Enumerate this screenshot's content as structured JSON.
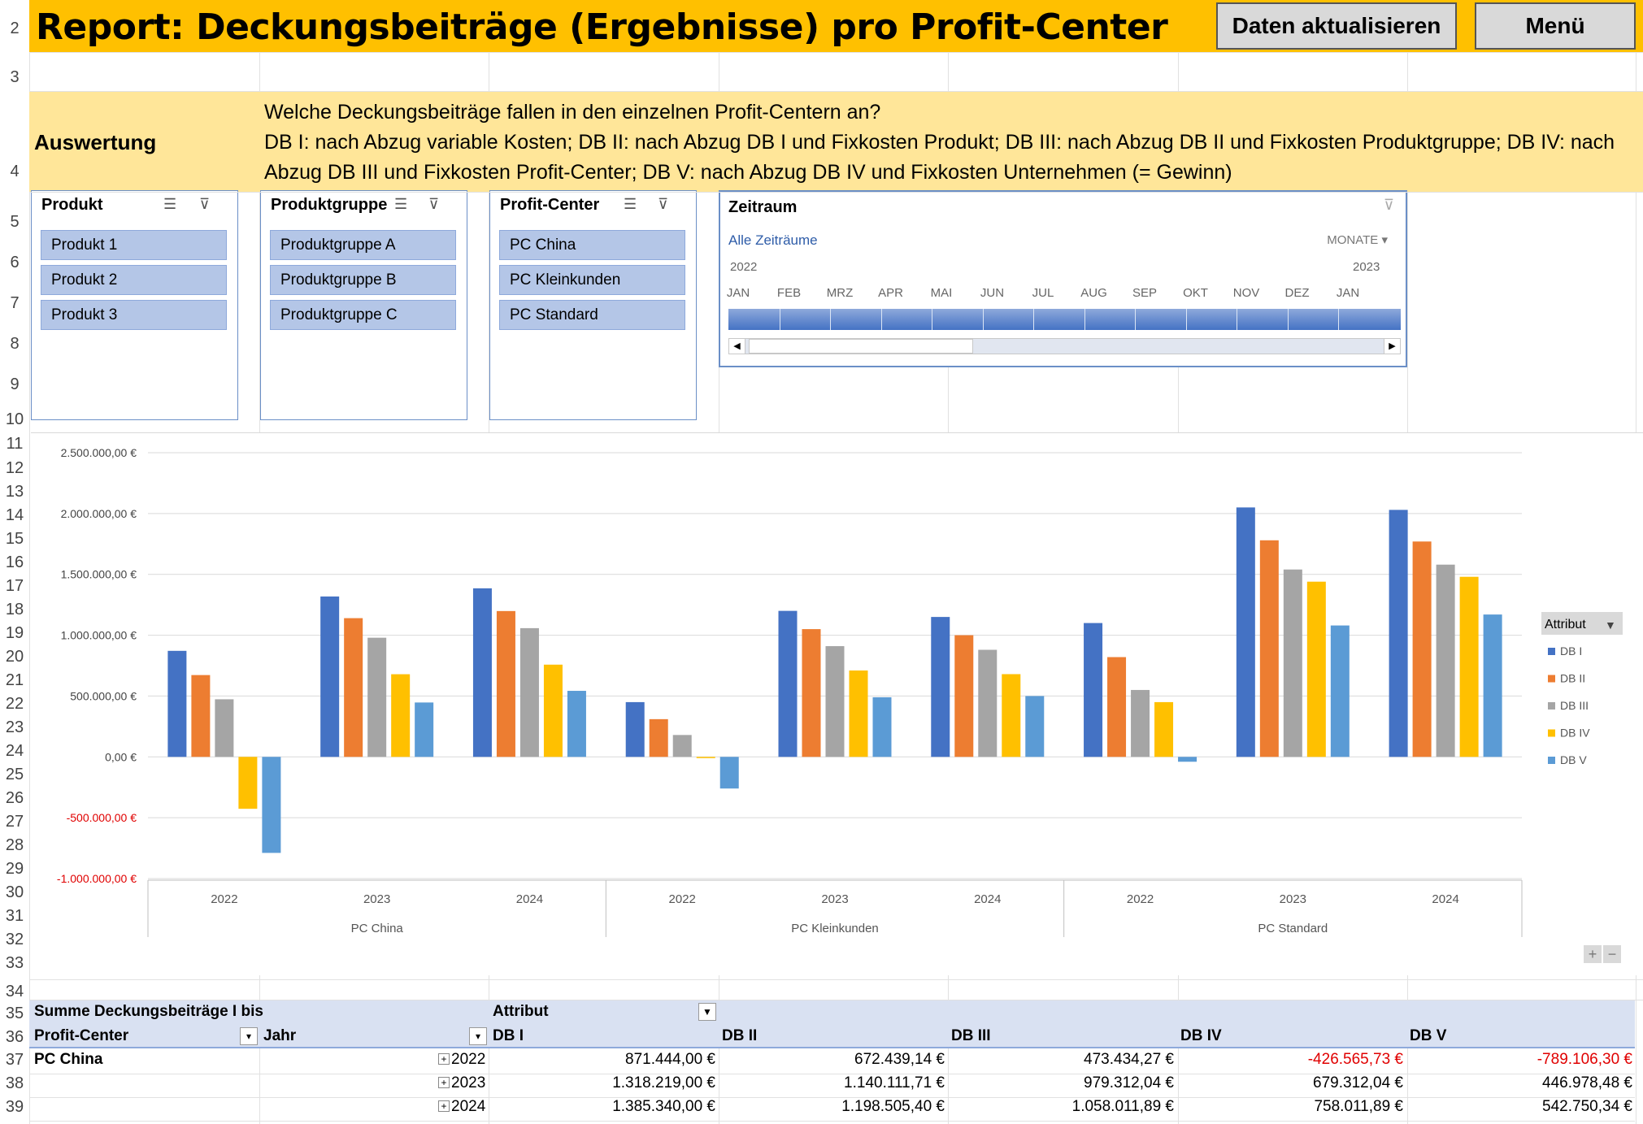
{
  "header": {
    "title": "Report: Deckungsbeiträge (Ergebnisse) pro Profit-Center",
    "refresh_label": "Daten aktualisieren",
    "menu_label": "Menü"
  },
  "info": {
    "label": "Auswertung",
    "line1": "Welche Deckungsbeiträge fallen in den einzelnen Profit-Centern an?",
    "line2": "DB I: nach Abzug variable Kosten; DB II: nach Abzug DB I und Fixkosten Produkt; DB III: nach Abzug DB II und Fixkosten Produktgruppe; DB IV: nach",
    "line3": "Abzug DB III und Fixkosten Profit-Center; DB V: nach Abzug DB IV und Fixkosten Unternehmen (= Gewinn)"
  },
  "rows": [
    "2",
    "3",
    "4",
    "5",
    "6",
    "7",
    "8",
    "9",
    "10",
    "11",
    "12",
    "13",
    "14",
    "15",
    "16",
    "17",
    "18",
    "19",
    "20",
    "21",
    "22",
    "23",
    "24",
    "25",
    "26",
    "27",
    "28",
    "29",
    "30",
    "31",
    "32",
    "33",
    "34",
    "35",
    "36",
    "37",
    "38",
    "39"
  ],
  "slicers": {
    "produkt": {
      "title": "Produkt",
      "items": [
        "Produkt 1",
        "Produkt 2",
        "Produkt 3"
      ]
    },
    "produktgruppe": {
      "title": "Produktgruppe",
      "items": [
        "Produktgruppe A",
        "Produktgruppe B",
        "Produktgruppe C"
      ]
    },
    "profitcenter": {
      "title": "Profit-Center",
      "items": [
        "PC China",
        "PC Kleinkunden",
        "PC Standard"
      ]
    }
  },
  "timeline": {
    "title": "Zeitraum",
    "all_label": "Alle Zeiträume",
    "level": "MONATE",
    "years": [
      "2022",
      "2023"
    ],
    "months": [
      "JAN",
      "FEB",
      "MRZ",
      "APR",
      "MAI",
      "JUN",
      "JUL",
      "AUG",
      "SEP",
      "OKT",
      "NOV",
      "DEZ",
      "JAN"
    ]
  },
  "chart_data": {
    "type": "bar",
    "groups": [
      "PC China",
      "PC Kleinkunden",
      "PC Standard"
    ],
    "categories": [
      "2022",
      "2023",
      "2024",
      "2022",
      "2023",
      "2024",
      "2022",
      "2023",
      "2024"
    ],
    "ylim": [
      -1000000,
      2500000
    ],
    "yticks": [
      "2.500.000,00 €",
      "2.000.000,00 €",
      "1.500.000,00 €",
      "1.000.000,00 €",
      "500.000,00 €",
      "0,00 €",
      "-500.000,00 €",
      "-1.000.000,00 €"
    ],
    "ytick_values": [
      2500000,
      2000000,
      1500000,
      1000000,
      500000,
      0,
      -500000,
      -1000000
    ],
    "legend_title": "Attribut",
    "legend_position": "right",
    "grid": true,
    "series": [
      {
        "name": "DB I",
        "color": "#4472c4",
        "values": [
          871444,
          1318219,
          1385340,
          450000,
          1200000,
          1150000,
          1100000,
          2050000,
          2030000
        ]
      },
      {
        "name": "DB II",
        "color": "#ed7d31",
        "values": [
          672439,
          1140112,
          1198505,
          310000,
          1050000,
          1000000,
          820000,
          1780000,
          1770000
        ]
      },
      {
        "name": "DB III",
        "color": "#a5a5a5",
        "values": [
          473434,
          979312,
          1058012,
          180000,
          910000,
          880000,
          550000,
          1540000,
          1580000
        ]
      },
      {
        "name": "DB IV",
        "color": "#ffc000",
        "values": [
          -426566,
          679312,
          758012,
          -10000,
          710000,
          680000,
          450000,
          1440000,
          1480000
        ]
      },
      {
        "name": "DB V",
        "color": "#5b9bd5",
        "values": [
          -789106,
          446978,
          542750,
          -260000,
          490000,
          500000,
          -40000,
          1080000,
          1170000
        ]
      }
    ]
  },
  "pivot": {
    "corner": "Summe Deckungsbeiträge I bis",
    "attribut": "Attribut",
    "col_pc": "Profit-Center",
    "col_jahr": "Jahr",
    "columns": [
      "DB I",
      "DB II",
      "DB III",
      "DB IV",
      "DB V"
    ],
    "rows": [
      {
        "pc": "PC China",
        "jahr": "2022",
        "values": [
          "871.444,00 €",
          "672.439,14 €",
          "473.434,27 €",
          "-426.565,73 €",
          "-789.106,30 €"
        ]
      },
      {
        "pc": "",
        "jahr": "2023",
        "values": [
          "1.318.219,00 €",
          "1.140.111,71 €",
          "979.312,04 €",
          "679.312,04 €",
          "446.978,48 €"
        ]
      },
      {
        "pc": "",
        "jahr": "2024",
        "values": [
          "1.385.340,00 €",
          "1.198.505,40 €",
          "1.058.011,89 €",
          "758.011,89 €",
          "542.750,34 €"
        ]
      }
    ]
  }
}
